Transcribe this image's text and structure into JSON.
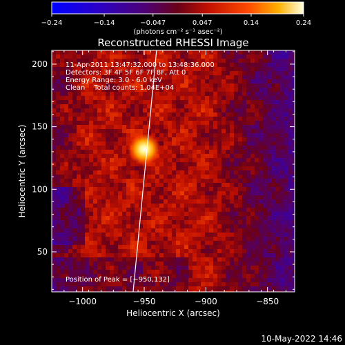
{
  "chart_data": {
    "type": "heatmap",
    "title": "Reconstructed RHESSI Image",
    "xlabel": "Heliocentric X (arcsec)",
    "ylabel": "Heliocentric Y (arcsec)",
    "xlim": [
      -1025,
      -828
    ],
    "ylim": [
      18,
      211
    ],
    "x_ticks": [
      -1000,
      -950,
      -900,
      -850
    ],
    "x_tick_labels": [
      "−1000",
      "−950",
      "−900",
      "−850"
    ],
    "y_ticks": [
      50,
      100,
      150,
      200
    ],
    "y_tick_labels": [
      "50",
      "100",
      "150",
      "200"
    ],
    "colorbar": {
      "min": -0.24,
      "max": 0.24,
      "ticks": [
        -0.24,
        -0.14,
        -0.047,
        0.047,
        0.14,
        0.24
      ],
      "tick_labels": [
        "−0.24",
        "−0.14",
        "−0.047",
        "0.047",
        "0.14",
        "0.24"
      ],
      "unit_label": "(photons cm⁻² s⁻¹ asec⁻²)"
    },
    "annotations": {
      "time": "11-Apr-2011 13:47:32.000 to 13:48:36.000",
      "detectors": "Detectors: 3F 4F 5F 6F 7F 8F, Att 0",
      "energy": "Energy Range: 3.0 - 6.0 keV",
      "clean": "Clean    Total counts: 1.04E+04",
      "peak": "Position of Peak = [−950,132]"
    },
    "peak_position": [
      -950,
      132
    ],
    "limb_line": [
      [
        -940,
        211
      ],
      [
        -959,
        18
      ]
    ]
  },
  "footer": {
    "date": "10-May-2022 14:46"
  },
  "colors": {
    "background": "#000000",
    "text": "#ffffff"
  }
}
